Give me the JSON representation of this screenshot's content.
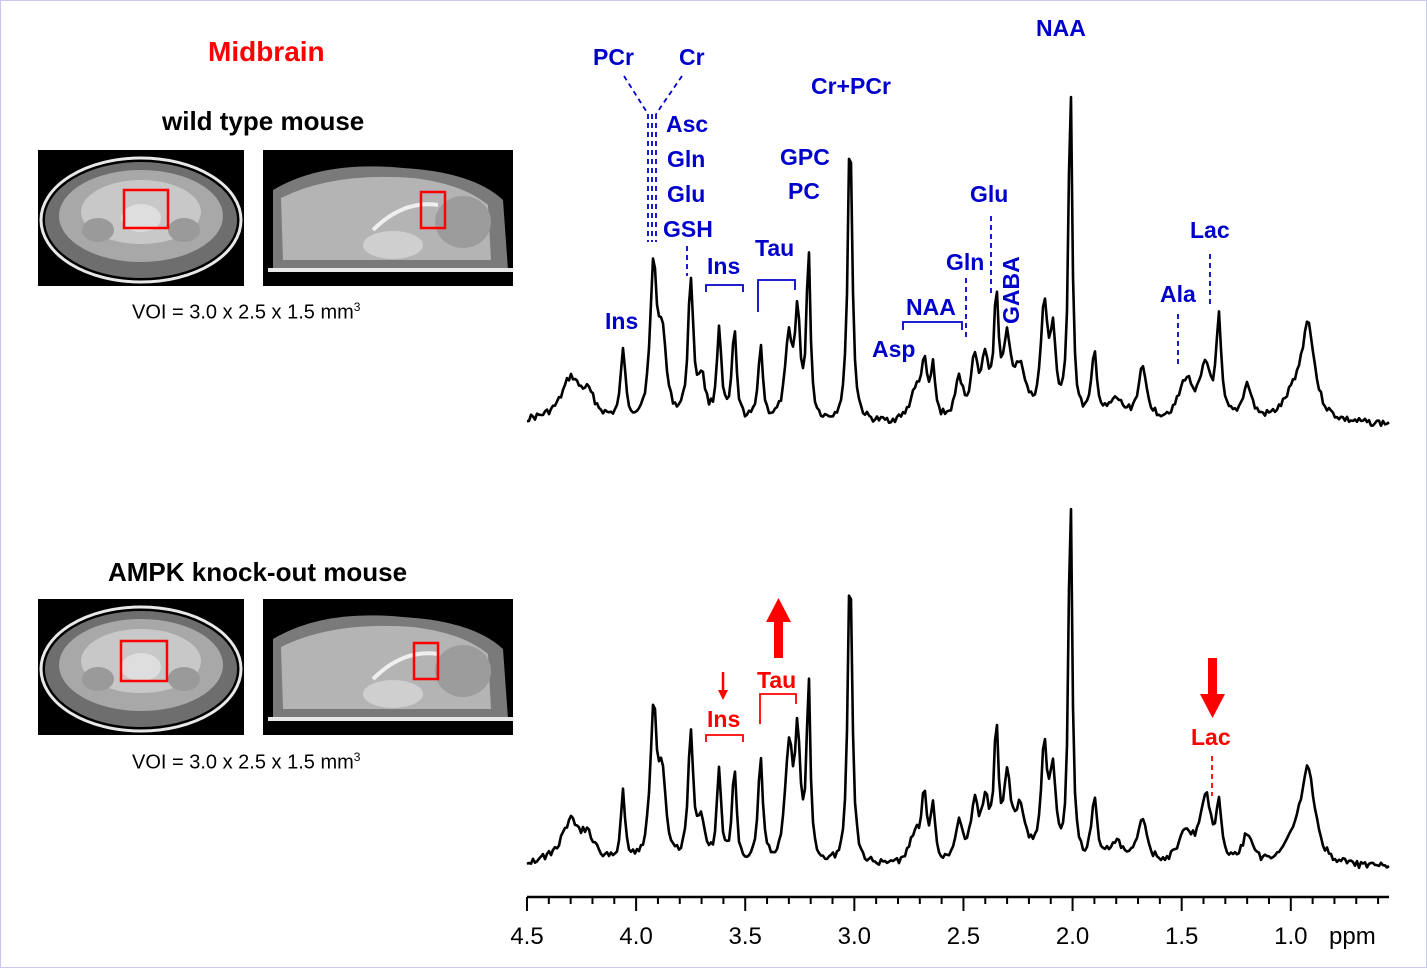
{
  "title": "Midbrain",
  "panels": [
    {
      "label": "wild type mouse",
      "voi_text": "VOI = 3.0 x 2.5 x 1.5 mm",
      "voi_sup": "3"
    },
    {
      "label": "AMPK knock-out mouse",
      "voi_text": "VOI = 3.0 x 2.5 x 1.5 mm",
      "voi_sup": "3"
    }
  ],
  "axis": {
    "ticks": [
      "4.5",
      "4.0",
      "3.5",
      "3.0",
      "2.5",
      "2.0",
      "1.5",
      "1.0"
    ],
    "unit": "ppm"
  },
  "wt_labels": {
    "pcr": "PCr",
    "cr": "Cr",
    "asc": "Asc",
    "gln1": "Gln",
    "glu1": "Glu",
    "gsh": "GSH",
    "ins1": "Ins",
    "ins2": "Ins",
    "tau": "Tau",
    "gpc": "GPC",
    "pc": "PC",
    "crpcr": "Cr+PCr",
    "asp": "Asp",
    "naa_small": "NAA",
    "gln2": "Gln",
    "glu2": "Glu",
    "gaba": "GABA",
    "naa": "NAA",
    "ala": "Ala",
    "lac": "Lac"
  },
  "ko_labels": {
    "ins": "Ins",
    "tau": "Tau",
    "lac": "Lac"
  },
  "colors": {
    "title": "#ff0000",
    "wt_label": "#0000cc",
    "ko_label": "#ff0000",
    "trace": "#000000",
    "voi_box": "#ff0000"
  }
}
